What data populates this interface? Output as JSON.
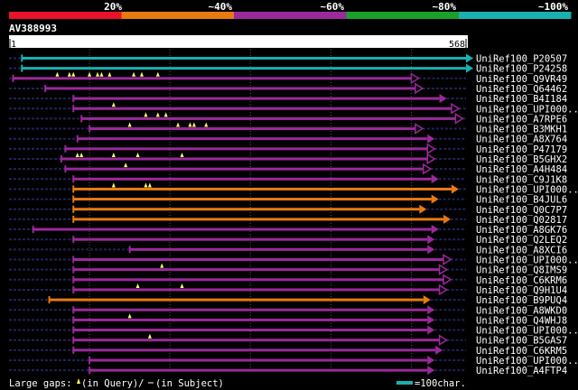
{
  "header": {
    "identity_labels": [
      "20%",
      "~40%",
      "~60%",
      "~80%",
      "~100%"
    ],
    "identity_colors": [
      "#e8122a",
      "#e87a12",
      "#9a2a9a",
      "#1aa02a",
      "#1ab0b0"
    ]
  },
  "query": {
    "accession": "AV388993",
    "start_label": "1",
    "end_label": "568",
    "length": 568
  },
  "footer": {
    "gaps_prefix": "Large gaps: ",
    "gaps_query": "(in Query)/",
    "gaps_subject": "(in Subject)",
    "scale_label": "=100char."
  },
  "colors": {
    "cyan": "#1ab0b0",
    "purple": "#9a2a9a",
    "orange": "#e87a12",
    "gap": "#ffff66",
    "dashed": "#222255"
  },
  "hits": [
    {
      "id": "UniRef100_P20507",
      "color": "cyan",
      "q_start": 16,
      "q_end": 568,
      "arrow": "solid",
      "gaps": []
    },
    {
      "id": "UniRef100_P24258",
      "color": "cyan",
      "q_start": 16,
      "q_end": 568,
      "arrow": "solid",
      "gaps": []
    },
    {
      "id": "UniRef100_Q9VR49",
      "color": "purple",
      "q_start": 5,
      "q_end": 500,
      "arrow": "open",
      "gaps": [
        60,
        75,
        80,
        100,
        110,
        115,
        125,
        155,
        165,
        185
      ]
    },
    {
      "id": "UniRef100_Q64462",
      "color": "purple",
      "q_start": 45,
      "q_end": 505,
      "arrow": "open",
      "gaps": []
    },
    {
      "id": "UniRef100_B4I184",
      "color": "purple",
      "q_start": 80,
      "q_end": 535,
      "arrow": "solid",
      "gaps": []
    },
    {
      "id": "UniRef100_UPI000..",
      "color": "purple",
      "q_start": 80,
      "q_end": 550,
      "arrow": "open",
      "gaps": [
        130
      ]
    },
    {
      "id": "UniRef100_A7RPE6",
      "color": "purple",
      "q_start": 90,
      "q_end": 555,
      "arrow": "open",
      "gaps": [
        170,
        185,
        195
      ]
    },
    {
      "id": "UniRef100_B3MKH1",
      "color": "purple",
      "q_start": 100,
      "q_end": 505,
      "arrow": "open",
      "gaps": [
        150,
        210,
        225,
        230,
        245
      ]
    },
    {
      "id": "UniRef100_A8X764",
      "color": "purple",
      "q_start": 85,
      "q_end": 520,
      "arrow": "solid",
      "gaps": []
    },
    {
      "id": "UniRef100_P47179",
      "color": "purple",
      "q_start": 70,
      "q_end": 520,
      "arrow": "open",
      "gaps": []
    },
    {
      "id": "UniRef100_B5GHX2",
      "color": "purple",
      "q_start": 65,
      "q_end": 520,
      "arrow": "open",
      "gaps": [
        85,
        90,
        130,
        160,
        215
      ]
    },
    {
      "id": "UniRef100_A4H484",
      "color": "purple",
      "q_start": 70,
      "q_end": 515,
      "arrow": "open",
      "gaps": [
        145
      ]
    },
    {
      "id": "UniRef100_C9J1K8",
      "color": "purple",
      "q_start": 80,
      "q_end": 525,
      "arrow": "solid",
      "gaps": []
    },
    {
      "id": "UniRef100_UPI000..",
      "color": "orange",
      "q_start": 80,
      "q_end": 550,
      "arrow": "solid",
      "gaps": [
        130,
        170,
        175
      ]
    },
    {
      "id": "UniRef100_B4JUL6",
      "color": "orange",
      "q_start": 80,
      "q_end": 525,
      "arrow": "solid",
      "gaps": []
    },
    {
      "id": "UniRef100_Q0C7P7",
      "color": "orange",
      "q_start": 80,
      "q_end": 510,
      "arrow": "solid",
      "gaps": []
    },
    {
      "id": "UniRef100_Q02817",
      "color": "orange",
      "q_start": 80,
      "q_end": 540,
      "arrow": "solid",
      "gaps": []
    },
    {
      "id": "UniRef100_A8GK76",
      "color": "purple",
      "q_start": 30,
      "q_end": 525,
      "arrow": "solid",
      "gaps": []
    },
    {
      "id": "UniRef100_Q2LEQ2",
      "color": "purple",
      "q_start": 80,
      "q_end": 520,
      "arrow": "solid",
      "gaps": []
    },
    {
      "id": "UniRef100_A8XCI6",
      "color": "purple",
      "q_start": 150,
      "q_end": 520,
      "arrow": "solid",
      "gaps": []
    },
    {
      "id": "UniRef100_UPI000..",
      "color": "purple",
      "q_start": 80,
      "q_end": 540,
      "arrow": "open",
      "gaps": []
    },
    {
      "id": "UniRef100_Q8IMS9",
      "color": "purple",
      "q_start": 80,
      "q_end": 535,
      "arrow": "open",
      "gaps": [
        190
      ]
    },
    {
      "id": "UniRef100_C6KRM6",
      "color": "purple",
      "q_start": 80,
      "q_end": 540,
      "arrow": "open",
      "gaps": []
    },
    {
      "id": "UniRef100_Q9H1U4",
      "color": "purple",
      "q_start": 80,
      "q_end": 535,
      "arrow": "open",
      "gaps": [
        160,
        215
      ]
    },
    {
      "id": "UniRef100_B9PUQ4",
      "color": "orange",
      "q_start": 50,
      "q_end": 515,
      "arrow": "solid",
      "gaps": []
    },
    {
      "id": "UniRef100_A8WKD0",
      "color": "purple",
      "q_start": 80,
      "q_end": 520,
      "arrow": "solid",
      "gaps": []
    },
    {
      "id": "UniRef100_Q4WHJ8",
      "color": "purple",
      "q_start": 80,
      "q_end": 520,
      "arrow": "solid",
      "gaps": [
        150
      ]
    },
    {
      "id": "UniRef100_UPI000..",
      "color": "purple",
      "q_start": 80,
      "q_end": 520,
      "arrow": "solid",
      "gaps": []
    },
    {
      "id": "UniRef100_B5GAS7",
      "color": "purple",
      "q_start": 80,
      "q_end": 535,
      "arrow": "open",
      "gaps": [
        175
      ]
    },
    {
      "id": "UniRef100_C6KRM5",
      "color": "purple",
      "q_start": 80,
      "q_end": 530,
      "arrow": "solid",
      "gaps": []
    },
    {
      "id": "UniRef100_UPI000..",
      "color": "purple",
      "q_start": 100,
      "q_end": 520,
      "arrow": "solid",
      "gaps": []
    },
    {
      "id": "UniRef100_A4FTP4",
      "color": "purple",
      "q_start": 100,
      "q_end": 520,
      "arrow": "solid",
      "gaps": []
    }
  ]
}
